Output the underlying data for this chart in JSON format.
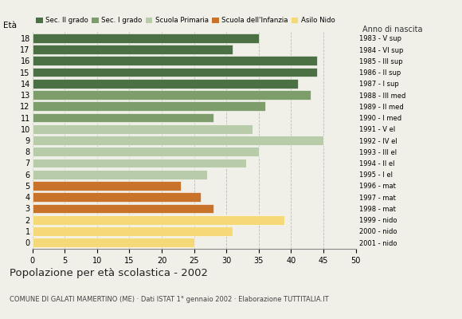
{
  "ages": [
    18,
    17,
    16,
    15,
    14,
    13,
    12,
    11,
    10,
    9,
    8,
    7,
    6,
    5,
    4,
    3,
    2,
    1,
    0
  ],
  "values": [
    35,
    31,
    44,
    44,
    41,
    43,
    36,
    28,
    34,
    45,
    35,
    33,
    27,
    23,
    26,
    28,
    39,
    31,
    25
  ],
  "colors": [
    "#4a7043",
    "#4a7043",
    "#4a7043",
    "#4a7043",
    "#4a7043",
    "#7d9e6a",
    "#7d9e6a",
    "#7d9e6a",
    "#b8ccaa",
    "#b8ccaa",
    "#b8ccaa",
    "#b8ccaa",
    "#b8ccaa",
    "#c8722a",
    "#c8722a",
    "#c8722a",
    "#f5d878",
    "#f5d878",
    "#f5d878"
  ],
  "right_labels": [
    "1983 - V sup",
    "1984 - VI sup",
    "1985 - III sup",
    "1986 - II sup",
    "1987 - I sup",
    "1988 - III med",
    "1989 - II med",
    "1990 - I med",
    "1991 - V el",
    "1992 - IV el",
    "1993 - III el",
    "1994 - II el",
    "1995 - I el",
    "1996 - mat",
    "1997 - mat",
    "1998 - mat",
    "1999 - nido",
    "2000 - nido",
    "2001 - nido"
  ],
  "legend_labels": [
    "Sec. II grado",
    "Sec. I grado",
    "Scuola Primaria",
    "Scuola dell'Infanzia",
    "Asilo Nido"
  ],
  "legend_colors": [
    "#4a7043",
    "#7d9e6a",
    "#b8ccaa",
    "#c8722a",
    "#f5d878"
  ],
  "ylabel": "Età",
  "title": "Popolazione per età scolastica - 2002",
  "subtitle": "COMUNE DI GALATI MAMERTINO (ME) · Dati ISTAT 1° gennaio 2002 · Elaborazione TUTTITALIA.IT",
  "right_axis_label": "Anno di nascita",
  "xlim": [
    0,
    50
  ],
  "xticks": [
    0,
    5,
    10,
    15,
    20,
    25,
    30,
    35,
    40,
    45,
    50
  ],
  "background_color": "#f0f0e8"
}
